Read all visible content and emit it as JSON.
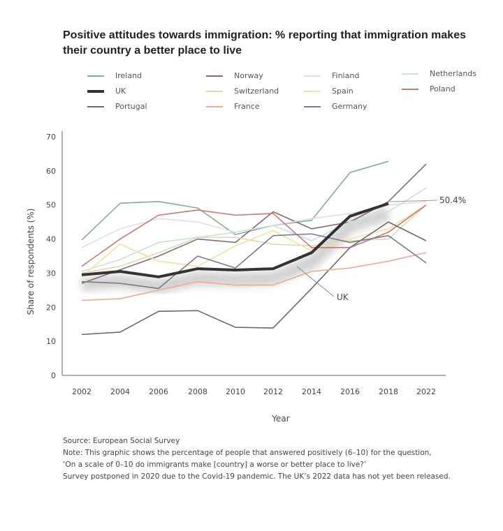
{
  "chart_data": {
    "type": "line",
    "title": "Positive attitudes towards immigration: % reporting that immigration makes their country a better place to live",
    "xlabel": "Year",
    "ylabel": "Share of respondents (%)",
    "ylim": [
      0,
      70
    ],
    "yticks": [
      "0",
      "10",
      "20",
      "30",
      "40",
      "50",
      "60",
      "70"
    ],
    "categories": [
      "2002",
      "2004",
      "2006",
      "2008",
      "2010",
      "2012",
      "2014",
      "2016",
      "2018",
      "2022"
    ],
    "legend_placement": "top",
    "series": [
      {
        "name": "Ireland",
        "color": "#7fb08f",
        "values": [
          39.7,
          50.5,
          51,
          49.1,
          41.3,
          44,
          45.5,
          59.5,
          62.8,
          null
        ]
      },
      {
        "name": "Norway",
        "color": "#8a6878",
        "values": [
          27,
          31,
          35,
          40,
          39,
          48,
          43,
          45,
          51,
          62
        ]
      },
      {
        "name": "Finland",
        "color": "#e4dbe0",
        "values": [
          37.5,
          43,
          46,
          45,
          42,
          44,
          46,
          47.5,
          50,
          51
        ]
      },
      {
        "name": "Netherlands",
        "color": "#c9e0e2",
        "values": [
          30.5,
          34,
          39,
          40.5,
          42,
          44,
          39.5,
          45,
          48,
          55
        ]
      },
      {
        "name": "Switzerland",
        "color": "#d6ddb0",
        "values": [
          30,
          32,
          36,
          40.5,
          40.5,
          38.5,
          38,
          39.5,
          40,
          50
        ]
      },
      {
        "name": "Spain",
        "color": "#f2e39a",
        "values": [
          29,
          38.5,
          33.5,
          32,
          38,
          42.5,
          36.5,
          40,
          43,
          50
        ]
      },
      {
        "name": "Poland",
        "color": "#c97870",
        "values": [
          32,
          40,
          47,
          48.5,
          47,
          47.5,
          37.5,
          37.5,
          42,
          50
        ]
      },
      {
        "name": "Portugal",
        "color": "#6a6a6a",
        "values": [
          12,
          12.7,
          18.8,
          19,
          14.1,
          13.9,
          25.5,
          37.5,
          45,
          39.5
        ]
      },
      {
        "name": "France",
        "color": "#f0a898",
        "values": [
          22,
          22.5,
          25,
          27.5,
          26.5,
          26.5,
          30.5,
          31.5,
          33.5,
          36
        ]
      },
      {
        "name": "Germany",
        "color": "#7c7a8a",
        "values": [
          27.5,
          27,
          25.5,
          35,
          31.5,
          41,
          41.5,
          39,
          41,
          33
        ]
      },
      {
        "name": "UK",
        "color": "#333333",
        "values": [
          29.5,
          30.5,
          28.9,
          31.3,
          30.9,
          31.3,
          36,
          46.7,
          50.4,
          null
        ]
      }
    ],
    "annotations": [
      {
        "text": "UK"
      },
      {
        "text": "50.4%"
      }
    ]
  },
  "legend_order": [
    "Ireland",
    "Norway",
    "Finland",
    "Netherlands",
    "UK",
    "Switzerland",
    "Spain",
    "Poland",
    "Portugal",
    "France",
    "Germany"
  ],
  "notes": [
    "Source: European Social Survey",
    "Note: This graphic shows the percentage of people that answered positively (6–10) for the question,",
    "‘On a scale of 0–10 do immigrants make [country] a worse or better place to live?’",
    "Survey postponed in 2020 due to the Covid-19 pandemic. The UK’s 2022 data has not yet been released."
  ]
}
